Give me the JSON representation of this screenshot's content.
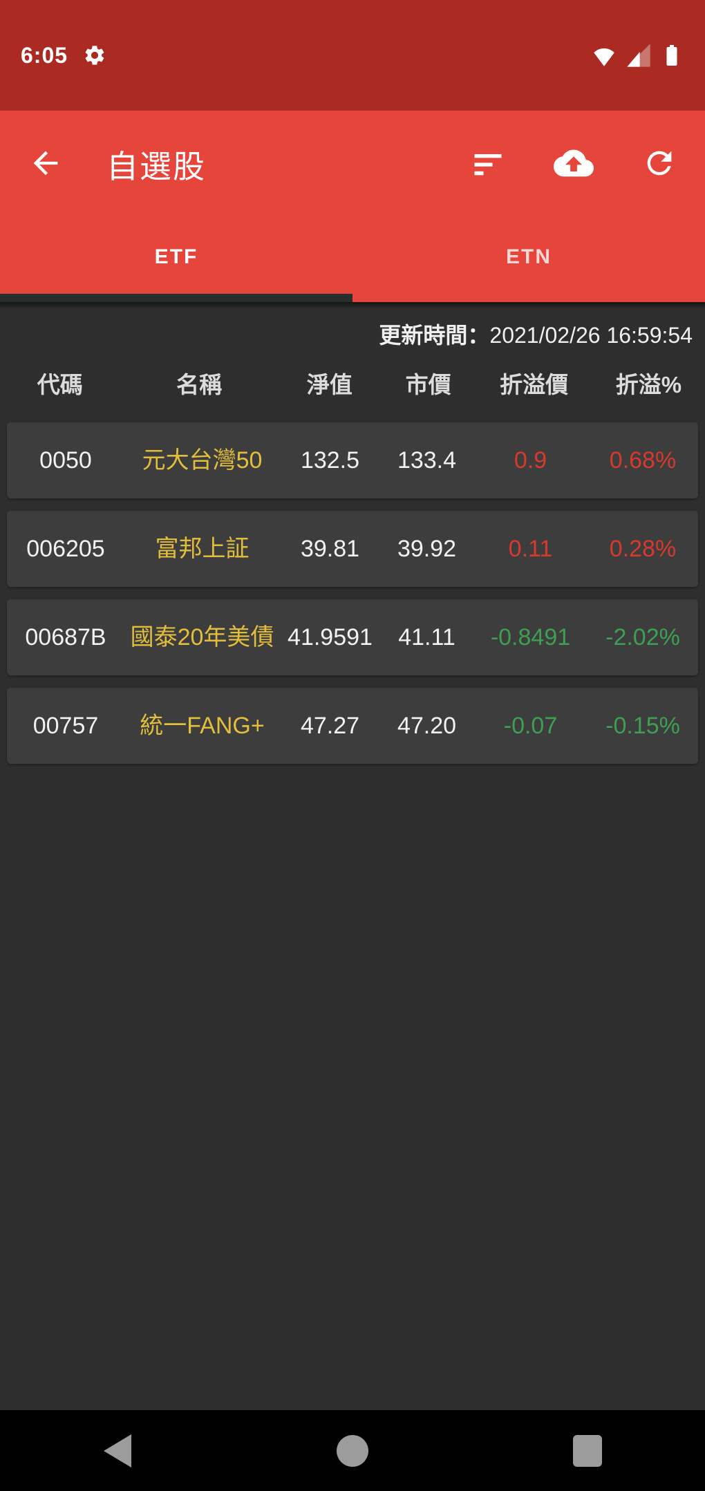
{
  "colors": {
    "status_bar_bg": "#AB2B23",
    "app_bar_bg": "#E6453B",
    "page_bg": "#2E2E2E",
    "card_bg": "#3D3D3D",
    "up_red": "#D63A2F",
    "down_green": "#3E9E52",
    "stock_name_yellow": "#E2BE3C",
    "tab_indicator": "#272E2E"
  },
  "status_bar": {
    "time": "6:05",
    "left_icons": [
      "notification-gear"
    ],
    "right_icons": [
      "wifi",
      "cellular-signal",
      "battery"
    ]
  },
  "app_bar": {
    "title": "自選股",
    "actions": [
      "sort",
      "cloud-upload",
      "refresh"
    ]
  },
  "tab_bar": {
    "selected": "ETF",
    "tabs": [
      {
        "label": "ETF"
      },
      {
        "label": "ETN"
      }
    ]
  },
  "content": {
    "update_time_label": "更新時間：",
    "update_time_value": "2021/02/26 16:59:54",
    "table": {
      "headers": [
        "代碼",
        "名稱",
        "淨值",
        "市價",
        "折溢價",
        "折溢%"
      ],
      "rows": [
        {
          "code": "0050",
          "name": "元大台灣50",
          "nav": "132.5",
          "price": "133.4",
          "premium": "0.9",
          "premium_pct": "0.68%",
          "direction": "up"
        },
        {
          "code": "006205",
          "name": "富邦上証",
          "nav": "39.81",
          "price": "39.92",
          "premium": "0.11",
          "premium_pct": "0.28%",
          "direction": "up"
        },
        {
          "code": "00687B",
          "name": "國泰20年美債",
          "nav": "41.9591",
          "price": "41.11",
          "premium": "-0.8491",
          "premium_pct": "-2.02%",
          "direction": "down"
        },
        {
          "code": "00757",
          "name": "統一FANG+",
          "nav": "47.27",
          "price": "47.20",
          "premium": "-0.07",
          "premium_pct": "-0.15%",
          "direction": "down"
        }
      ]
    }
  },
  "nav_bar": {
    "buttons": [
      "back",
      "home",
      "recents"
    ]
  }
}
